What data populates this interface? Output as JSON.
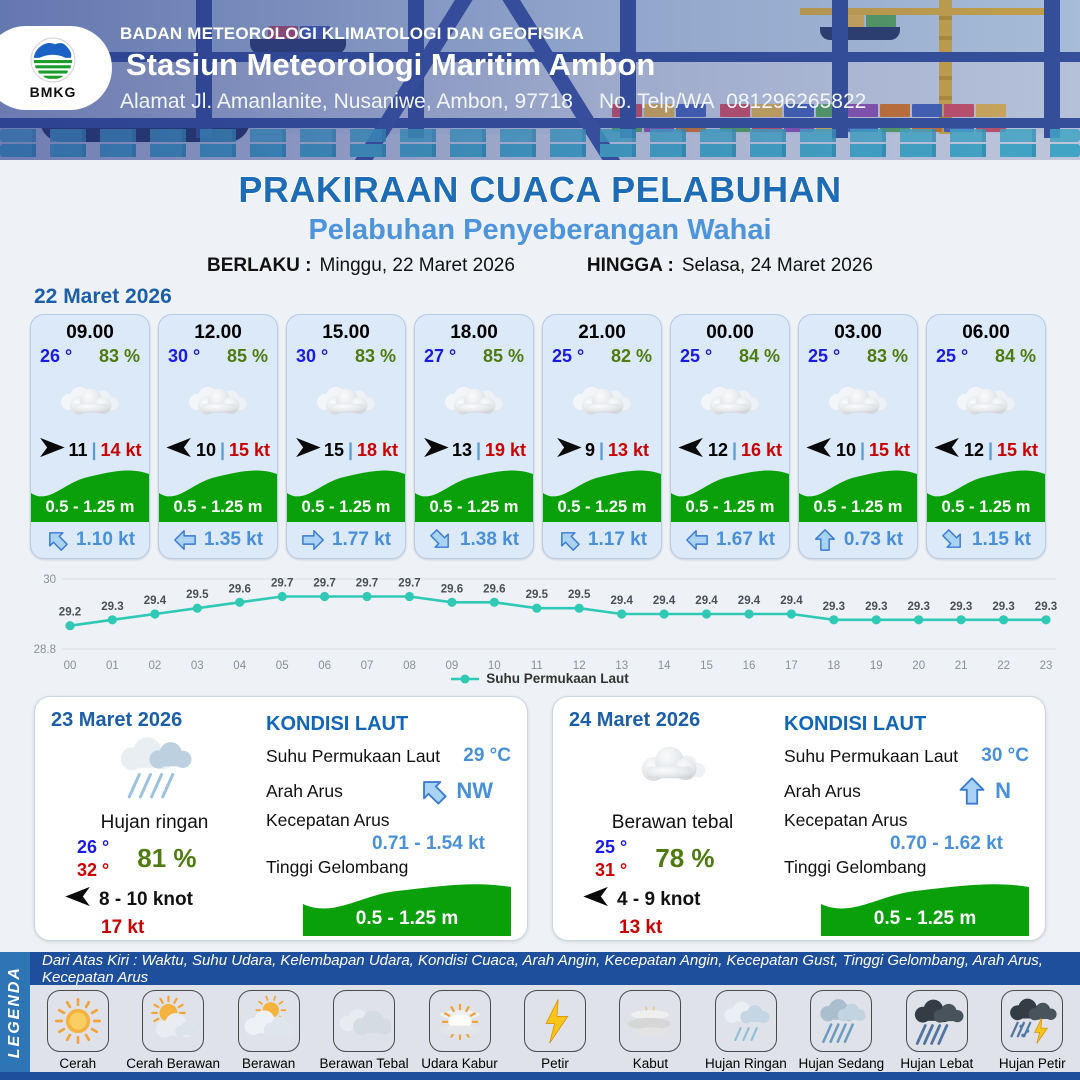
{
  "header": {
    "logo": "BMKG",
    "agency": "BADAN METEOROLOGI KLIMATOLOGI DAN GEOFISIKA",
    "station": "Stasiun Meteorologi Maritim Ambon",
    "address": "Alamat Jl. Amanlanite, Nusaniwe, Ambon, 97718",
    "contact_label": "No. Telp/WA",
    "contact": "081296265822"
  },
  "title": {
    "main": "PRAKIRAAN CUACA PELABUHAN",
    "subtitle": "Pelabuhan Penyeberangan Wahai",
    "berlaku_label": "BERLAKU :",
    "berlaku": "Minggu, 22 Maret 2026",
    "hingga_label": "HINGGA :",
    "hingga": "Selasa, 24 Maret 2026"
  },
  "hourly": {
    "date": "22 Maret 2026",
    "cards": [
      {
        "time": "09.00",
        "temp": "26 °",
        "humidity": "83 %",
        "weather_icon": "berawan-tebal",
        "wind_arrow": "right",
        "wind_speed": "11",
        "wind_gust": "14 kt",
        "wave_height": "0.5 - 1.25 m",
        "current_dir": "NW",
        "current_arrow_deg": -45,
        "current_speed": "1.10 kt"
      },
      {
        "time": "12.00",
        "temp": "30 °",
        "humidity": "85 %",
        "weather_icon": "berawan-tebal",
        "wind_arrow": "left",
        "wind_speed": "10",
        "wind_gust": "15 kt",
        "wave_height": "0.5 - 1.25 m",
        "current_dir": "W",
        "current_arrow_deg": -90,
        "current_speed": "1.35 kt"
      },
      {
        "time": "15.00",
        "temp": "30 °",
        "humidity": "83 %",
        "weather_icon": "berawan-tebal",
        "wind_arrow": "right",
        "wind_speed": "15",
        "wind_gust": "18 kt",
        "wave_height": "0.5 - 1.25 m",
        "current_dir": "E",
        "current_arrow_deg": 90,
        "current_speed": "1.77 kt"
      },
      {
        "time": "18.00",
        "temp": "27 °",
        "humidity": "85 %",
        "weather_icon": "berawan-tebal",
        "wind_arrow": "right",
        "wind_speed": "13",
        "wind_gust": "19 kt",
        "wave_height": "0.5 - 1.25 m",
        "current_dir": "SE",
        "current_arrow_deg": 135,
        "current_speed": "1.38 kt"
      },
      {
        "time": "21.00",
        "temp": "25 °",
        "humidity": "82 %",
        "weather_icon": "berawan-tebal",
        "wind_arrow": "right",
        "wind_speed": "9",
        "wind_gust": "13 kt",
        "wave_height": "0.5 - 1.25 m",
        "current_dir": "NW",
        "current_arrow_deg": -45,
        "current_speed": "1.17 kt"
      },
      {
        "time": "00.00",
        "temp": "25 °",
        "humidity": "84 %",
        "weather_icon": "berawan-tebal",
        "wind_arrow": "left",
        "wind_speed": "12",
        "wind_gust": "16 kt",
        "wave_height": "0.5 - 1.25 m",
        "current_dir": "W",
        "current_arrow_deg": -90,
        "current_speed": "1.67 kt"
      },
      {
        "time": "03.00",
        "temp": "25 °",
        "humidity": "83 %",
        "weather_icon": "berawan-tebal",
        "wind_arrow": "left",
        "wind_speed": "10",
        "wind_gust": "15 kt",
        "wave_height": "0.5 - 1.25 m",
        "current_dir": "N",
        "current_arrow_deg": 0,
        "current_speed": "0.73 kt"
      },
      {
        "time": "06.00",
        "temp": "25 °",
        "humidity": "84 %",
        "weather_icon": "berawan-tebal",
        "wind_arrow": "left",
        "wind_speed": "12",
        "wind_gust": "15 kt",
        "wave_height": "0.5 - 1.25 m",
        "current_dir": "SE",
        "current_arrow_deg": 135,
        "current_speed": "1.15 kt"
      }
    ]
  },
  "chart_data": {
    "type": "line",
    "x": [
      "00",
      "01",
      "02",
      "03",
      "04",
      "05",
      "06",
      "07",
      "08",
      "09",
      "10",
      "11",
      "12",
      "13",
      "14",
      "15",
      "16",
      "17",
      "18",
      "19",
      "20",
      "21",
      "22",
      "23"
    ],
    "series": [
      {
        "name": "Suhu Permukaan Laut",
        "values": [
          29.2,
          29.3,
          29.4,
          29.5,
          29.6,
          29.7,
          29.7,
          29.7,
          29.7,
          29.6,
          29.6,
          29.5,
          29.5,
          29.4,
          29.4,
          29.4,
          29.4,
          29.4,
          29.3,
          29.3,
          29.3,
          29.3,
          29.3,
          29.3
        ]
      }
    ],
    "title": "",
    "xlabel": "",
    "ylabel": "",
    "ylim": [
      28.8,
      30
    ],
    "yticks": [
      "28.8",
      "30"
    ],
    "grid": true,
    "legend_position": "bottom",
    "line_color": "#2fc9b5"
  },
  "daily": [
    {
      "date": "23 Maret 2026",
      "icon": "hujan-ringan",
      "condition": "Hujan ringan",
      "temp_min": "26 °",
      "temp_max": "32 °",
      "humidity": "81 %",
      "wind": "8 - 10 knot",
      "gust": "17 kt",
      "sea": {
        "title": "KONDISI LAUT",
        "sst_label": "Suhu Permukaan Laut",
        "sst": "29 °C",
        "current_dir_label": "Arah Arus",
        "current_dir": "NW",
        "current_dir_deg": -45,
        "current_speed_label": "Kecepatan Arus",
        "current_speed": "0.71 - 1.54 kt",
        "wave_label": "Tinggi Gelombang",
        "wave": "0.5 - 1.25 m"
      }
    },
    {
      "date": "24 Maret 2026",
      "icon": "berawan-tebal",
      "condition": "Berawan tebal",
      "temp_min": "25 °",
      "temp_max": "31 °",
      "humidity": "78 %",
      "wind": "4 - 9 knot",
      "gust": "13 kt",
      "sea": {
        "title": "KONDISI LAUT",
        "sst_label": "Suhu Permukaan Laut",
        "sst": "30 °C",
        "current_dir_label": "Arah Arus",
        "current_dir": "N",
        "current_dir_deg": 0,
        "current_speed_label": "Kecepatan Arus",
        "current_speed": "0.70 - 1.62 kt",
        "wave_label": "Tinggi Gelombang",
        "wave": "0.5 - 1.25 m"
      }
    }
  ],
  "legend": {
    "title": "LEGENDA",
    "note": "Dari Atas Kiri : Waktu, Suhu Udara, Kelembapan Udara, Kondisi Cuaca, Arah Angin, Kecepatan Angin, Kecepatan Gust, Tinggi Gelombang, Arah Arus, Kecepatan Arus",
    "items": [
      {
        "label": "Cerah",
        "icon": "cerah"
      },
      {
        "label": "Cerah Berawan",
        "icon": "cerah-berawan"
      },
      {
        "label": "Berawan",
        "icon": "berawan"
      },
      {
        "label": "Berawan Tebal",
        "icon": "berawan-tebal"
      },
      {
        "label": "Udara Kabur",
        "icon": "udara-kabur"
      },
      {
        "label": "Petir",
        "icon": "petir"
      },
      {
        "label": "Kabut",
        "icon": "kabut"
      },
      {
        "label": "Hujan Ringan",
        "icon": "hujan-ringan"
      },
      {
        "label": "Hujan Sedang",
        "icon": "hujan-sedang"
      },
      {
        "label": "Hujan Lebat",
        "icon": "hujan-lebat"
      },
      {
        "label": "Hujan Petir",
        "icon": "hujan-petir"
      }
    ]
  },
  "colors": {
    "title_blue": "#1e6cb5",
    "subtitle_blue": "#4d94db",
    "temp_blue": "#1a1ae6",
    "humidity_green": "#4e7b0f",
    "gust_red": "#c80000",
    "wave_green": "#09a009",
    "current_blue": "#4a90d9",
    "chart_teal": "#2fc9b5",
    "header_navy": "#1e4f9c"
  }
}
